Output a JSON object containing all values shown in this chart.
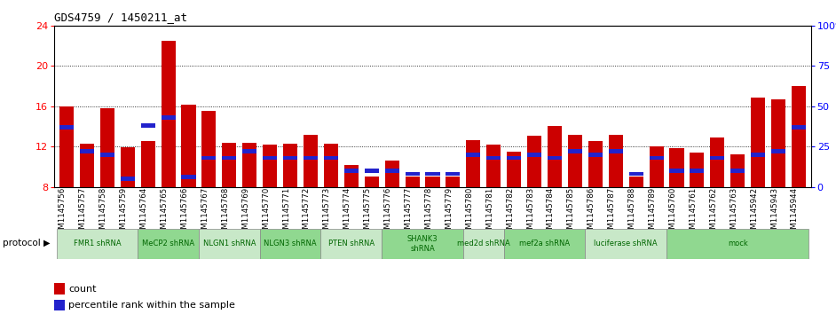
{
  "title": "GDS4759 / 1450211_at",
  "samples": [
    "GSM1145756",
    "GSM1145757",
    "GSM1145758",
    "GSM1145759",
    "GSM1145764",
    "GSM1145765",
    "GSM1145766",
    "GSM1145767",
    "GSM1145768",
    "GSM1145769",
    "GSM1145770",
    "GSM1145771",
    "GSM1145772",
    "GSM1145773",
    "GSM1145774",
    "GSM1145775",
    "GSM1145776",
    "GSM1145777",
    "GSM1145778",
    "GSM1145779",
    "GSM1145780",
    "GSM1145781",
    "GSM1145782",
    "GSM1145783",
    "GSM1145784",
    "GSM1145785",
    "GSM1145786",
    "GSM1145787",
    "GSM1145788",
    "GSM1145789",
    "GSM1145760",
    "GSM1145761",
    "GSM1145762",
    "GSM1145763",
    "GSM1145942",
    "GSM1145943",
    "GSM1145944"
  ],
  "counts": [
    16.0,
    12.3,
    15.8,
    11.9,
    12.5,
    22.5,
    16.2,
    15.5,
    12.4,
    12.4,
    12.2,
    12.3,
    13.2,
    12.3,
    10.2,
    9.0,
    10.6,
    9.0,
    9.0,
    9.0,
    12.6,
    12.2,
    11.5,
    13.1,
    14.0,
    13.2,
    12.5,
    13.2,
    9.0,
    12.0,
    11.8,
    11.4,
    12.9,
    11.2,
    16.9,
    16.7,
    18.0
  ],
  "percentiles": [
    37,
    22,
    20,
    5,
    38,
    43,
    6,
    18,
    18,
    22,
    18,
    18,
    18,
    18,
    10,
    10,
    10,
    8,
    8,
    8,
    20,
    18,
    18,
    20,
    18,
    22,
    20,
    22,
    8,
    18,
    10,
    10,
    18,
    10,
    20,
    22,
    37
  ],
  "protocol_groups": [
    {
      "label": "FMR1 shRNA",
      "start": 0,
      "end": 4,
      "color": "#c8e8c8"
    },
    {
      "label": "MeCP2 shRNA",
      "start": 4,
      "end": 7,
      "color": "#90d890"
    },
    {
      "label": "NLGN1 shRNA",
      "start": 7,
      "end": 10,
      "color": "#c8e8c8"
    },
    {
      "label": "NLGN3 shRNA",
      "start": 10,
      "end": 13,
      "color": "#90d890"
    },
    {
      "label": "PTEN shRNA",
      "start": 13,
      "end": 16,
      "color": "#c8e8c8"
    },
    {
      "label": "SHANK3\nshRNA",
      "start": 16,
      "end": 20,
      "color": "#90d890"
    },
    {
      "label": "med2d shRNA",
      "start": 20,
      "end": 22,
      "color": "#c8e8c8"
    },
    {
      "label": "mef2a shRNA",
      "start": 22,
      "end": 26,
      "color": "#90d890"
    },
    {
      "label": "luciferase shRNA",
      "start": 26,
      "end": 30,
      "color": "#c8e8c8"
    },
    {
      "label": "mock",
      "start": 30,
      "end": 37,
      "color": "#90d890"
    }
  ],
  "ylim_left": [
    8,
    24
  ],
  "ylim_right": [
    0,
    100
  ],
  "yticks_left": [
    8,
    12,
    16,
    20,
    24
  ],
  "yticks_right": [
    0,
    25,
    50,
    75,
    100
  ],
  "ytick_labels_right": [
    "0",
    "25",
    "50",
    "75",
    "100%"
  ],
  "bar_color": "#cc0000",
  "blue_color": "#2222cc",
  "bar_width": 0.7
}
